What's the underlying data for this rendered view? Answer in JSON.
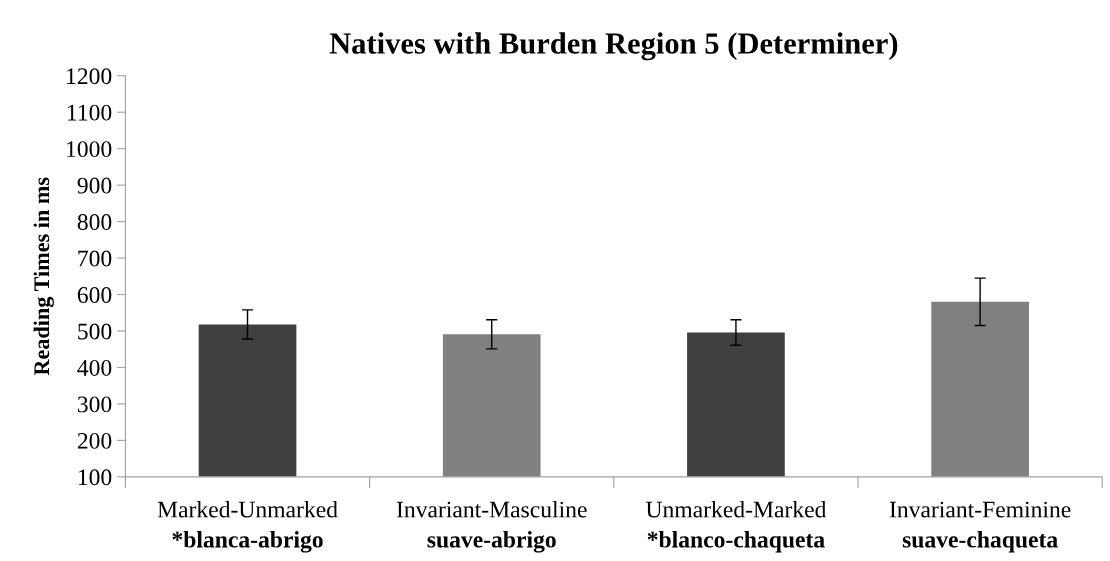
{
  "chart_data": {
    "type": "bar",
    "title": "Natives with Burden Region 5 (Determiner)",
    "ylabel": "Reading Times in ms",
    "categories": [
      "Marked-Unmarked\n*blanca-abrigo",
      "Invariant-Masculine\nsuave-abrigo",
      "Unmarked-Marked\n*blanco-chaqueta",
      "Invariant-Feminine\nsuave-chaqueta"
    ],
    "values": [
      518,
      491,
      496,
      580
    ],
    "errors": [
      40,
      40,
      35,
      65
    ],
    "colors": [
      "#404040",
      "#808080",
      "#404040",
      "#808080"
    ],
    "ylim": [
      100,
      1200
    ],
    "yticks": [
      100,
      200,
      300,
      400,
      500,
      600,
      700,
      800,
      900,
      1000,
      1100,
      1200
    ],
    "grid": false,
    "legend": false
  }
}
